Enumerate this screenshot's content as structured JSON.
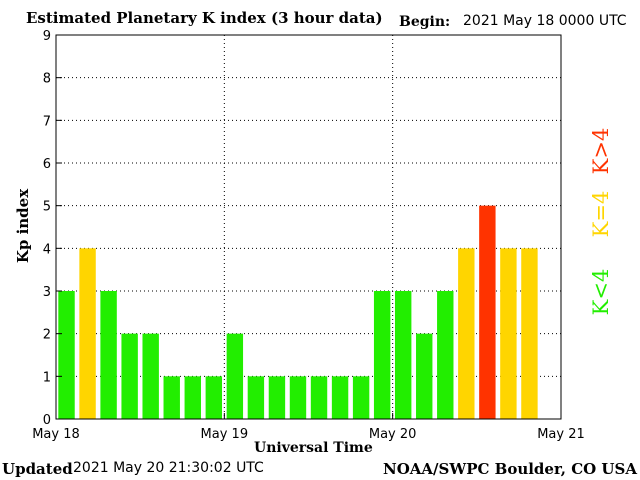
{
  "header": {
    "title": "Estimated Planetary K index (3 hour data)",
    "begin_label": "Begin:",
    "begin_value": "2021 May 18 0000 UTC"
  },
  "footer": {
    "updated_label": "Updated",
    "updated_value": "2021 May 20 21:30:02 UTC",
    "credit": "NOAA/SWPC Boulder, CO USA"
  },
  "legend": {
    "gt4": {
      "label": "K>4",
      "color": "#ff3300"
    },
    "eq4": {
      "label": "K=4",
      "color": "#ffd500"
    },
    "lt4": {
      "label": "K<4",
      "color": "#22ee00"
    }
  },
  "chart_data": {
    "type": "bar",
    "xlabel": "Universal Time",
    "ylabel": "Kp index",
    "ylim": [
      0,
      9
    ],
    "yticks": [
      0,
      1,
      2,
      3,
      4,
      5,
      6,
      7,
      8,
      9
    ],
    "x_tick_labels": [
      "May 18",
      "May 19",
      "May 20",
      "May 21"
    ],
    "interval_hours": 3,
    "grid": true,
    "colors": {
      "low": "#22ee00",
      "equal": "#ffd500",
      "high": "#ff3300"
    },
    "values": [
      3,
      4,
      3,
      2,
      2,
      1,
      1,
      1,
      2,
      1,
      1,
      1,
      1,
      1,
      1,
      3,
      3,
      2,
      3,
      4,
      5,
      4,
      4
    ]
  }
}
